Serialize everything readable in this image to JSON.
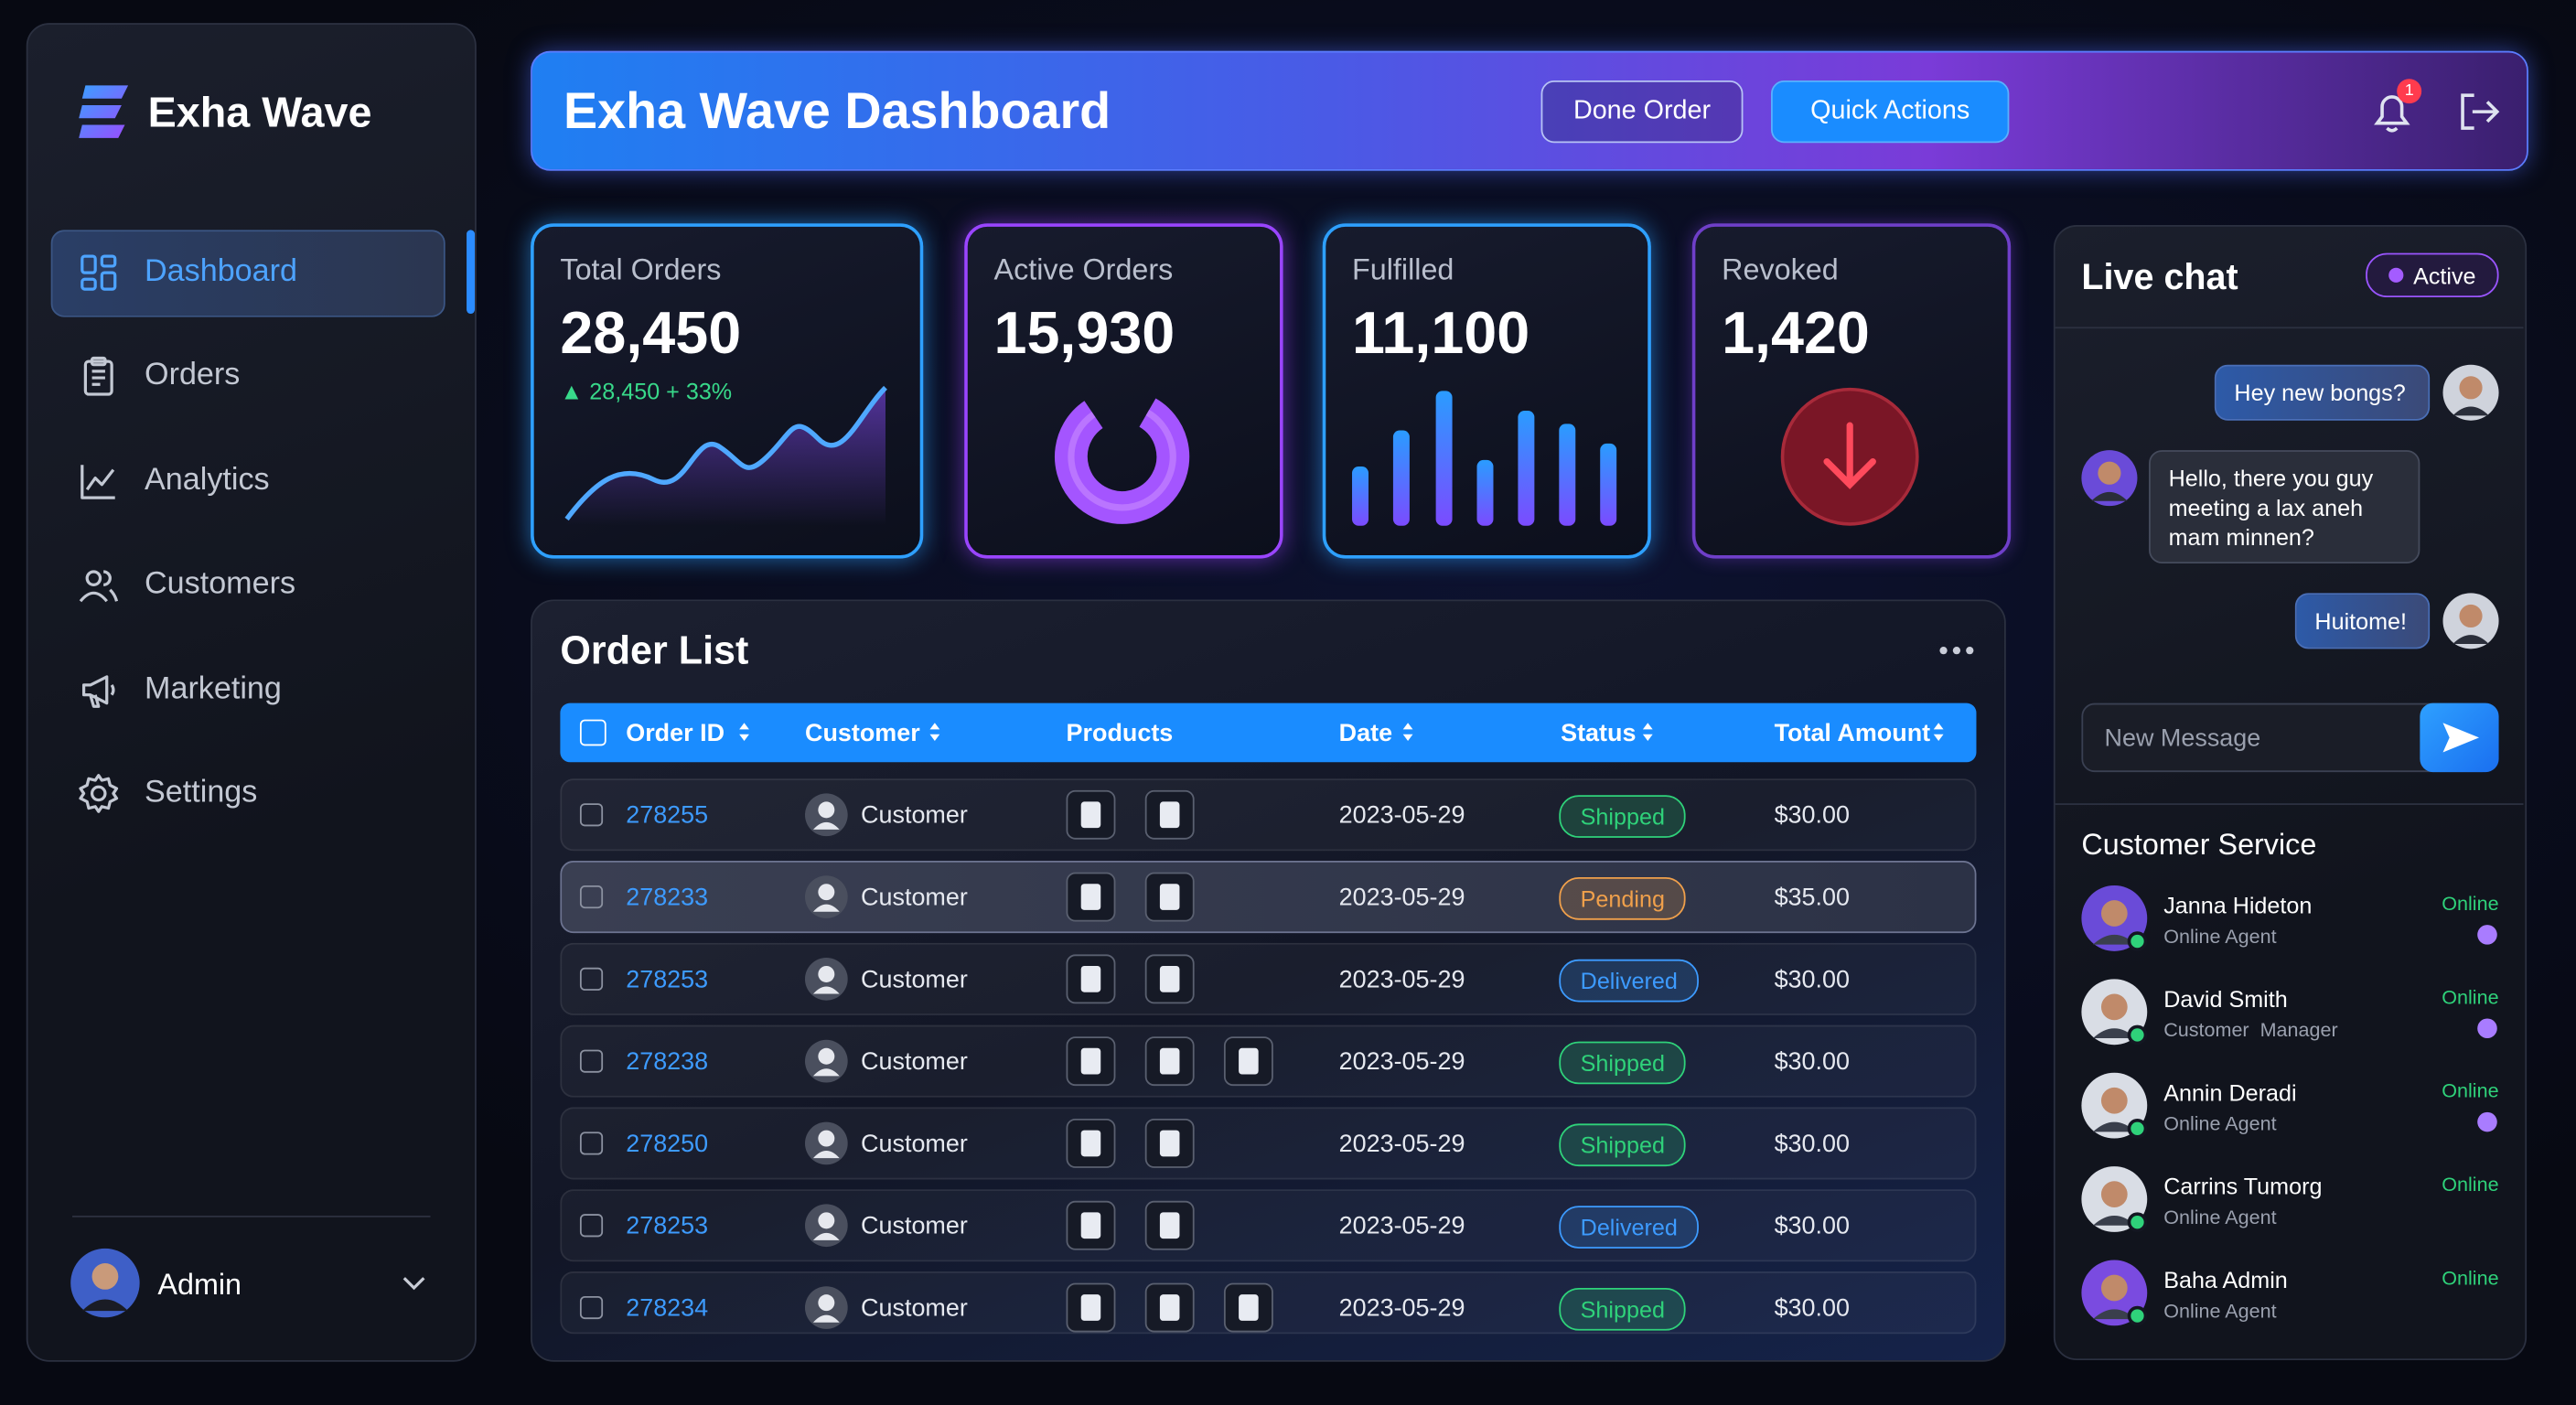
{
  "sidebar": {
    "brand": "Exha Wave",
    "nav": [
      "Dashboard",
      "Orders",
      "Analytics",
      "Customers",
      "Marketing",
      "Settings"
    ],
    "user": "Admin"
  },
  "header": {
    "title": "Exha Wave Dashboard",
    "buttons": [
      "Done Order",
      "Quick Actions"
    ],
    "notifications": 1
  },
  "stats": [
    {
      "label": "Total Orders",
      "value": "28,450",
      "change": "28,450 + 33%"
    },
    {
      "label": "Active Orders",
      "value": "15,930"
    },
    {
      "label": "Fulfilled",
      "value": "11,100"
    },
    {
      "label": "Revoked",
      "value": "1,420"
    }
  ],
  "orders": {
    "title": "Order List",
    "columns": [
      "Order ID",
      "Customer",
      "Products",
      "Date",
      "Status",
      "Total Amount"
    ],
    "rows": [
      {
        "id": "278255",
        "customer": "Customer",
        "date": "2023-05-29",
        "status": "Shipped",
        "status_color": "#2fd27a",
        "total": "$30.00"
      },
      {
        "id": "278233",
        "customer": "Customer",
        "date": "2023-05-29",
        "status": "Pending",
        "status_color": "#f0a04b",
        "total": "$35.00"
      },
      {
        "id": "278253",
        "customer": "Customer",
        "date": "2023-05-29",
        "status": "Delivered",
        "status_color": "#3d9bff",
        "total": "$30.00"
      },
      {
        "id": "278238",
        "customer": "Customer",
        "date": "2023-05-29",
        "status": "Shipped",
        "status_color": "#2fd27a",
        "total": "$30.00"
      },
      {
        "id": "278250",
        "customer": "Customer",
        "date": "2023-05-29",
        "status": "Shipped",
        "status_color": "#2fd27a",
        "total": "$30.00"
      },
      {
        "id": "278253",
        "customer": "Customer",
        "date": "2023-05-29",
        "status": "Delivered",
        "status_color": "#3d9bff",
        "total": "$30.00"
      },
      {
        "id": "278234",
        "customer": "Customer",
        "date": "2023-05-29",
        "status": "Shipped",
        "status_color": "#2fd27a",
        "total": "$30.00"
      }
    ]
  },
  "chat": {
    "title": "Live chat",
    "status": "Active",
    "messages": [
      {
        "text": "Hey new bongs?",
        "sent": true
      },
      {
        "text": "Hello, there you guy meeting a lax aneh mam minnen?",
        "sent": false
      },
      {
        "text": "Huitome!",
        "sent": true
      }
    ],
    "placeholder": "New Message"
  },
  "service": {
    "title": "Customer Service",
    "agents": [
      {
        "name": "Janna Hideton",
        "role": "Online Agent",
        "status": "Online"
      },
      {
        "name": "David Smith",
        "role": "Customer  Manager",
        "status": "Online"
      },
      {
        "name": "Annin Deradi",
        "role": "Online Agent",
        "status": "Online"
      },
      {
        "name": "Carrins Tumorg",
        "role": "Online Agent",
        "status": "Online"
      },
      {
        "name": "Baha Admin",
        "role": "Online Agent",
        "status": "Online"
      }
    ]
  }
}
